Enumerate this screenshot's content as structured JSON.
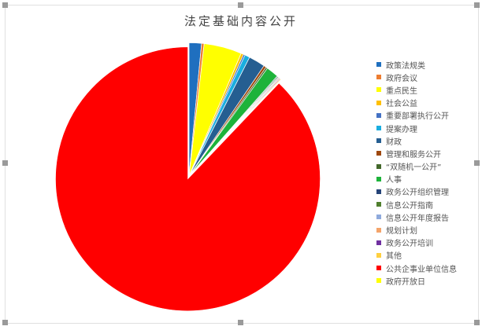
{
  "chart_data": {
    "type": "pie",
    "title": "法定基础内容公开",
    "legend_position": "right",
    "categories": [
      "政策法规类",
      "政府会议",
      "重点民生",
      "社会公益",
      "重要部署执行公开",
      "提案办理",
      "财政",
      "管理和服务公开",
      "“双随机一公开”",
      "人事",
      "政务公开组织管理",
      "信息公开指南",
      "信息公开年度报告",
      "规划计划",
      "政务公开培训",
      "其他",
      "公共企事业单位信息",
      "政府开放日"
    ],
    "values": [
      1.5,
      0.3,
      4.6,
      0.3,
      0.2,
      0.6,
      2.0,
      0.3,
      0.2,
      1.5,
      0.1,
      0.1,
      0.1,
      0.1,
      0.1,
      0.1,
      88.0,
      0.0
    ],
    "colors": [
      "#1F6FBF",
      "#ED7D31",
      "#FFFF00",
      "#FFC000",
      "#4472C4",
      "#1AAEE0",
      "#255E91",
      "#9E480E",
      "#43682B",
      "#1DB33A",
      "#264478",
      "#4F7F2E",
      "#8FAADC",
      "#F4A46A",
      "#7030A0",
      "#FFD040",
      "#FF0000",
      "#FFFF00"
    ]
  }
}
